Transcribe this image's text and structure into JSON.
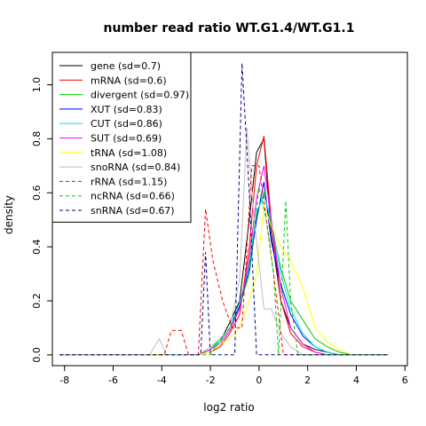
{
  "chart_data": {
    "type": "line",
    "title": "number read ratio WT.G1.4/WT.G1.1",
    "xlabel": "log2 ratio",
    "ylabel": "density",
    "xlim": [
      -8.5,
      6.1
    ],
    "ylim": [
      -0.04,
      1.12
    ],
    "xticks": [
      -8,
      -6,
      -4,
      -2,
      0,
      2,
      4,
      6
    ],
    "yticks": [
      0.0,
      0.2,
      0.4,
      0.6,
      0.8,
      1.0
    ],
    "xtick_labels": [
      "-8",
      "-6",
      "-4",
      "-2",
      "0",
      "2",
      "4",
      "6"
    ],
    "ytick_labels": [
      "0.0",
      "0.2",
      "0.4",
      "0.6",
      "0.8",
      "1.0"
    ],
    "grid": false,
    "legend_position": "top-left",
    "series": [
      {
        "name": "gene (sd=0.7)",
        "color": "#000000",
        "dash": "solid",
        "x": [
          -8.2,
          -2.5,
          -2.0,
          -1.6,
          -1.2,
          -0.8,
          -0.4,
          -0.1,
          0.2,
          0.5,
          0.9,
          1.3,
          1.8,
          2.3,
          2.8,
          3.3,
          3.8,
          5.3
        ],
        "y": [
          0.0,
          0.0,
          0.02,
          0.05,
          0.12,
          0.2,
          0.5,
          0.75,
          0.8,
          0.45,
          0.2,
          0.1,
          0.04,
          0.02,
          0.01,
          0.0,
          0.0,
          0.0
        ]
      },
      {
        "name": "mRNA (sd=0.6)",
        "color": "#ff0000",
        "dash": "solid",
        "x": [
          -8.2,
          -2.5,
          -2.0,
          -1.6,
          -1.2,
          -0.8,
          -0.4,
          -0.1,
          0.2,
          0.5,
          0.9,
          1.3,
          1.8,
          2.3,
          2.8,
          3.3,
          5.3
        ],
        "y": [
          0.0,
          0.0,
          0.01,
          0.03,
          0.08,
          0.15,
          0.4,
          0.7,
          0.81,
          0.5,
          0.2,
          0.08,
          0.03,
          0.01,
          0.0,
          0.0,
          0.0
        ]
      },
      {
        "name": "divergent (sd=0.97)",
        "color": "#00cd00",
        "dash": "solid",
        "x": [
          -8.2,
          -2.5,
          -2.0,
          -1.6,
          -1.2,
          -0.8,
          -0.4,
          -0.1,
          0.2,
          0.5,
          0.9,
          1.3,
          1.8,
          2.3,
          2.8,
          3.3,
          3.8,
          5.3
        ],
        "y": [
          0.0,
          0.0,
          0.02,
          0.06,
          0.1,
          0.18,
          0.3,
          0.52,
          0.6,
          0.48,
          0.32,
          0.2,
          0.13,
          0.06,
          0.03,
          0.01,
          0.0,
          0.0
        ]
      },
      {
        "name": "XUT (sd=0.83)",
        "color": "#0000ff",
        "dash": "solid",
        "x": [
          -8.2,
          -2.5,
          -2.0,
          -1.6,
          -1.2,
          -0.8,
          -0.4,
          -0.1,
          0.2,
          0.5,
          0.9,
          1.3,
          1.8,
          2.3,
          2.8,
          3.3,
          3.8,
          5.3
        ],
        "y": [
          0.0,
          0.0,
          0.02,
          0.05,
          0.1,
          0.18,
          0.32,
          0.5,
          0.64,
          0.42,
          0.26,
          0.15,
          0.07,
          0.03,
          0.01,
          0.0,
          0.0,
          0.0
        ]
      },
      {
        "name": "CUT (sd=0.86)",
        "color": "#00e5ee",
        "dash": "solid",
        "x": [
          -8.2,
          -2.5,
          -2.0,
          -1.6,
          -1.2,
          -0.8,
          -0.4,
          -0.1,
          0.2,
          0.5,
          0.9,
          1.3,
          1.8,
          2.3,
          2.8,
          3.3,
          5.3
        ],
        "y": [
          0.0,
          0.0,
          0.02,
          0.05,
          0.1,
          0.19,
          0.34,
          0.53,
          0.59,
          0.5,
          0.3,
          0.17,
          0.08,
          0.03,
          0.01,
          0.0,
          0.0
        ]
      },
      {
        "name": "SUT (sd=0.69)",
        "color": "#ff00ff",
        "dash": "solid",
        "x": [
          -8.2,
          -2.5,
          -2.0,
          -1.6,
          -1.2,
          -0.8,
          -0.4,
          -0.1,
          0.2,
          0.5,
          0.9,
          1.3,
          1.8,
          2.3,
          2.8,
          5.3
        ],
        "y": [
          0.0,
          0.0,
          0.02,
          0.04,
          0.09,
          0.17,
          0.36,
          0.58,
          0.7,
          0.5,
          0.25,
          0.1,
          0.04,
          0.01,
          0.0,
          0.0
        ]
      },
      {
        "name": "tRNA (sd=1.08)",
        "color": "#ffff00",
        "dash": "solid",
        "x": [
          -8.2,
          -2.5,
          -2.0,
          -1.6,
          -1.2,
          -0.8,
          -0.4,
          -0.1,
          0.2,
          0.5,
          0.9,
          1.3,
          1.8,
          2.3,
          2.8,
          3.3,
          3.8,
          5.3
        ],
        "y": [
          0.0,
          0.0,
          0.01,
          0.04,
          0.06,
          0.1,
          0.2,
          0.3,
          0.55,
          0.48,
          0.4,
          0.35,
          0.25,
          0.1,
          0.05,
          0.02,
          0.0,
          0.0
        ]
      },
      {
        "name": "snoRNA (sd=0.84)",
        "color": "#bebebe",
        "dash": "solid",
        "x": [
          -8.2,
          -4.5,
          -4.1,
          -3.8,
          -3.2,
          -2.5,
          -2.0,
          -1.6,
          -1.2,
          -0.8,
          -0.5,
          -0.2,
          0.2,
          0.5,
          0.9,
          1.3,
          1.8,
          2.5,
          5.3
        ],
        "y": [
          0.0,
          0.0,
          0.06,
          0.0,
          0.0,
          0.0,
          0.03,
          0.06,
          0.1,
          0.28,
          0.84,
          0.5,
          0.17,
          0.17,
          0.08,
          0.03,
          0.0,
          0.0,
          0.0
        ]
      },
      {
        "name": "rRNA (sd=1.15)",
        "color": "#ff0000",
        "dash": "dashed",
        "x": [
          -8.2,
          -3.9,
          -3.6,
          -3.2,
          -2.9,
          -2.5,
          -2.2,
          -1.9,
          -1.5,
          -1.1,
          -0.7,
          -0.3,
          0.0,
          0.3,
          0.6,
          1.0,
          5.3
        ],
        "y": [
          0.0,
          0.0,
          0.09,
          0.09,
          0.0,
          0.0,
          0.54,
          0.35,
          0.2,
          0.1,
          0.1,
          0.7,
          0.7,
          0.5,
          0.3,
          0.0,
          0.0
        ]
      },
      {
        "name": "ncRNA (sd=0.66)",
        "color": "#00cd00",
        "dash": "dashed",
        "x": [
          -8.2,
          -2.0,
          -1.6,
          -1.2,
          -0.8,
          -0.4,
          0.0,
          0.3,
          0.6,
          0.8,
          1.1,
          1.3,
          1.6,
          5.3
        ],
        "y": [
          0.0,
          0.0,
          0.05,
          0.1,
          0.2,
          0.3,
          0.62,
          0.5,
          0.3,
          0.0,
          0.57,
          0.2,
          0.0,
          0.0
        ]
      },
      {
        "name": "snRNA (sd=0.67)",
        "color": "#00008b",
        "dash": "dashed",
        "x": [
          -8.2,
          -2.4,
          -2.2,
          -2.0,
          -1.7,
          -1.3,
          -1.0,
          -0.7,
          -0.4,
          -0.1,
          0.15,
          0.4,
          0.7,
          5.3
        ],
        "y": [
          0.0,
          0.0,
          0.38,
          0.0,
          0.0,
          0.0,
          0.0,
          1.08,
          0.6,
          0.0,
          0.0,
          0.0,
          0.0,
          0.0
        ]
      }
    ]
  }
}
